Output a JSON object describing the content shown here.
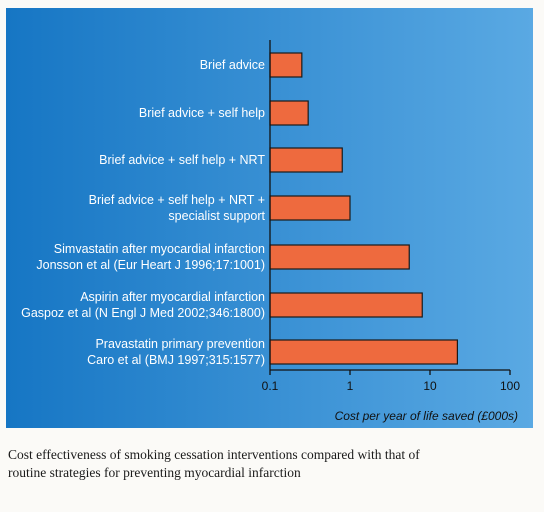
{
  "chart_data": {
    "type": "bar",
    "orientation": "horizontal",
    "xscale": "log",
    "xlim": [
      0.1,
      100
    ],
    "xticks": [
      "0.1",
      "1",
      "10",
      "100"
    ],
    "xlabel": "Cost per year of life saved (£000s)",
    "ylabel": "",
    "title": "",
    "grid": false,
    "categories": [
      {
        "lines": [
          "Brief advice"
        ],
        "value": 0.25
      },
      {
        "lines": [
          "Brief advice + self help"
        ],
        "value": 0.3
      },
      {
        "lines": [
          "Brief advice + self help + NRT"
        ],
        "value": 0.8
      },
      {
        "lines": [
          "Brief advice + self help + NRT +",
          "specialist support"
        ],
        "value": 1.0
      },
      {
        "lines": [
          "Simvastatin after myocardial infarction",
          "Jonsson et al (Eur Heart J 1996;17:1001)"
        ],
        "value": 5.5
      },
      {
        "lines": [
          "Aspirin after myocardial infarction",
          "Gaspoz et al (N Engl J Med 2002;346:1800)"
        ],
        "value": 8.0
      },
      {
        "lines": [
          "Pravastatin primary prevention",
          "Caro et al (BMJ 1997;315:1577)"
        ],
        "value": 22.0
      }
    ],
    "colors": {
      "panel_left": "#1676c4",
      "panel_right": "#5aa9e3",
      "bar": "#ee6a3e",
      "bar_edge": "#1a1a1a",
      "label": "#ffffff",
      "axis": "#111111"
    }
  },
  "caption": {
    "line1": "Cost effectiveness of smoking cessation interventions compared with that of",
    "line2": "routine strategies for preventing myocardial infarction"
  }
}
